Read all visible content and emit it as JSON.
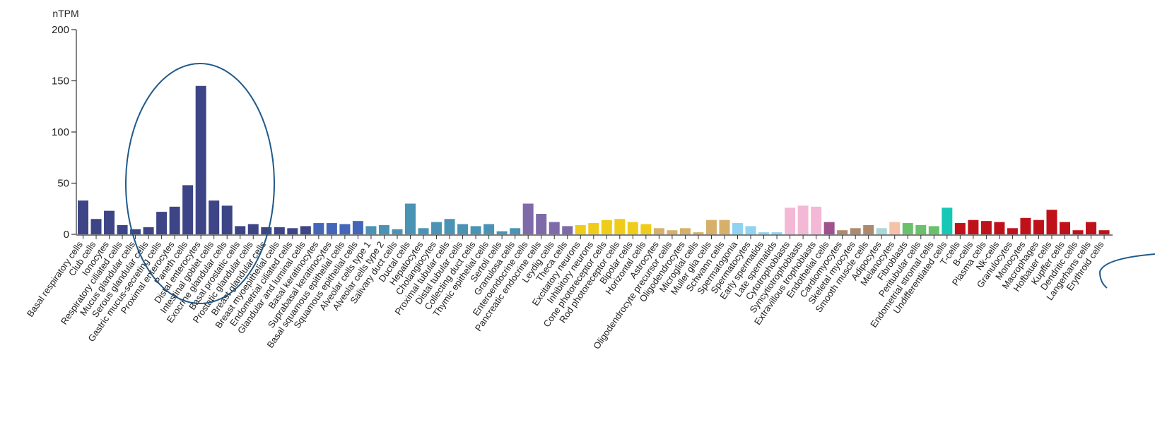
{
  "chart_data": {
    "type": "bar",
    "ylabel": "nTPM",
    "ylim": [
      0,
      200
    ],
    "yticks": [
      0,
      50,
      100,
      150,
      200
    ],
    "grid": false,
    "categories": [
      "Basal respiratory cells",
      "Club cells",
      "Ionocytes",
      "Respiratory ciliated cells",
      "Mucus glandular cells",
      "Serous glandular cells",
      "Gastric mucus-secreting cells",
      "Proximal enterocytes",
      "Paneth cells",
      "Distal enterocytes",
      "Intestinal goblet cells",
      "Exocrine glandular cells",
      "Basal prostatic cells",
      "Prostatic glandular cells",
      "Breast glandular cells",
      "Breast myoepithelial cells",
      "Endometrial ciliated cells",
      "Glandular and luminal cells",
      "Basal keratinocytes",
      "Suprabasal keratinocytes",
      "Basal squamous epithelial cells",
      "Squamous epithelial cells",
      "Alveolar cells type 1",
      "Alveolar cells type 2",
      "Salivary duct cells",
      "Ductal cells",
      "Hepatocytes",
      "Cholangiocytes",
      "Proximal tubular cells",
      "Distal tubular cells",
      "Collecting duct cells",
      "Thymic epithelial cells",
      "Sertoli cells",
      "Granulosa cells",
      "Enteroendocrine cells",
      "Pancreatic endocrine cells",
      "Leydig cells",
      "Theca cells",
      "Excitatory neurons",
      "Inhibitory neurons",
      "Cone photoreceptor cells",
      "Rod photoreceptor cells",
      "Bipolar cells",
      "Horizontal cells",
      "Astrocytes",
      "Oligodendrocyte precursor cells",
      "Oligodendrocytes",
      "Microglial cells",
      "Muller glia cells",
      "Schwann cells",
      "Spermatogonia",
      "Spermatocytes",
      "Early spermatids",
      "Late spermatids",
      "Cytotrophoblasts",
      "Syncytiotrophoblasts",
      "Extravillous trophoblasts",
      "Endothelial cells",
      "Cardiomyocytes",
      "Skeletal myocytes",
      "Smooth muscle cells",
      "Adipocytes",
      "Melanocytes",
      "Fibroblasts",
      "Peritubular cells",
      "Endometrial stromal cells",
      "Undifferentiated cells",
      "T-cells",
      "B-cells",
      "Plasma cells",
      "Nk-cells",
      "Granulocytes",
      "Monocytes",
      "Macrophages",
      "Hofbauer cells",
      "Kupffer cells",
      "Dendritic cells",
      "Langerhans cells",
      "Erythroid cells"
    ],
    "values": [
      33,
      15,
      23,
      9,
      5,
      7,
      22,
      27,
      48,
      145,
      33,
      28,
      8,
      10,
      7,
      7,
      6,
      8,
      11,
      11,
      10,
      13,
      8,
      9,
      5,
      30,
      6,
      12,
      15,
      10,
      8,
      10,
      3,
      6,
      30,
      20,
      12,
      8,
      9,
      11,
      14,
      15,
      12,
      10,
      6,
      4,
      6,
      2,
      14,
      14,
      11,
      8,
      2,
      2,
      26,
      28,
      27,
      12,
      4,
      6,
      9,
      6,
      12,
      11,
      9,
      8,
      26,
      11,
      14,
      13,
      12,
      6,
      16,
      14,
      24,
      12,
      4,
      12,
      4
    ],
    "colors": [
      "#3d4586",
      "#3d4586",
      "#3d4586",
      "#3d4586",
      "#3d4586",
      "#3d4586",
      "#3d4586",
      "#3d4586",
      "#3d4586",
      "#3d4586",
      "#3d4586",
      "#3d4586",
      "#3d4586",
      "#3d4586",
      "#3d4586",
      "#3d4586",
      "#3d4586",
      "#3d4586",
      "#4366b8",
      "#4366b8",
      "#4366b8",
      "#4366b8",
      "#4b93b5",
      "#4b93b5",
      "#4b93b5",
      "#4b93b5",
      "#4b93b5",
      "#4b93b5",
      "#4b93b5",
      "#4b93b5",
      "#4b93b5",
      "#4b93b5",
      "#4b93b5",
      "#4b93b5",
      "#7e6aa8",
      "#7e6aa8",
      "#7e6aa8",
      "#7e6aa8",
      "#f0cc1a",
      "#f0cc1a",
      "#f0cc1a",
      "#f0cc1a",
      "#f0cc1a",
      "#f0cc1a",
      "#d6b06a",
      "#d6b06a",
      "#d6b06a",
      "#d6b06a",
      "#d6b06a",
      "#d6b06a",
      "#8fd3f0",
      "#8fd3f0",
      "#8fd3f0",
      "#8fd3f0",
      "#f3b8d6",
      "#f3b8d6",
      "#f3b8d6",
      "#a0508c",
      "#ad8a6e",
      "#ad8a6e",
      "#ad8a6e",
      "#a8d8d8",
      "#f5c2a8",
      "#6bc06b",
      "#6bc06b",
      "#6bc06b",
      "#17c7b6",
      "#c0111b",
      "#c0111b",
      "#c0111b",
      "#c0111b",
      "#c0111b",
      "#c0111b",
      "#c0111b",
      "#c0111b",
      "#c0111b",
      "#c0111b",
      "#c0111b",
      "#c0111b"
    ]
  }
}
